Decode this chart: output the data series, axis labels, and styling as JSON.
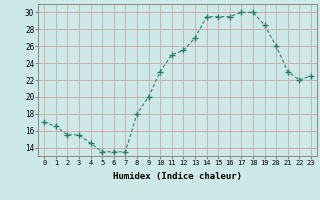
{
  "x": [
    0,
    1,
    2,
    3,
    4,
    5,
    6,
    7,
    8,
    9,
    10,
    11,
    12,
    13,
    14,
    15,
    16,
    17,
    18,
    19,
    20,
    21,
    22,
    23
  ],
  "y": [
    17,
    16.5,
    15.5,
    15.5,
    14.5,
    13.5,
    13.5,
    13.5,
    18,
    20,
    23,
    25,
    25.5,
    27,
    29.5,
    29.5,
    29.5,
    30,
    30,
    28.5,
    26,
    23,
    22,
    22.5
  ],
  "line_color": "#2e7d6b",
  "marker": "P",
  "marker_size": 3,
  "bg_color": "#cce9e8",
  "grid_color": "#c8a8a8",
  "xlabel": "Humidex (Indice chaleur)",
  "xlim": [
    -0.5,
    23.5
  ],
  "ylim": [
    13,
    31
  ],
  "yticks": [
    14,
    16,
    18,
    20,
    22,
    24,
    26,
    28,
    30
  ],
  "xticks": [
    0,
    1,
    2,
    3,
    4,
    5,
    6,
    7,
    8,
    9,
    10,
    11,
    12,
    13,
    14,
    15,
    16,
    17,
    18,
    19,
    20,
    21,
    22,
    23
  ]
}
